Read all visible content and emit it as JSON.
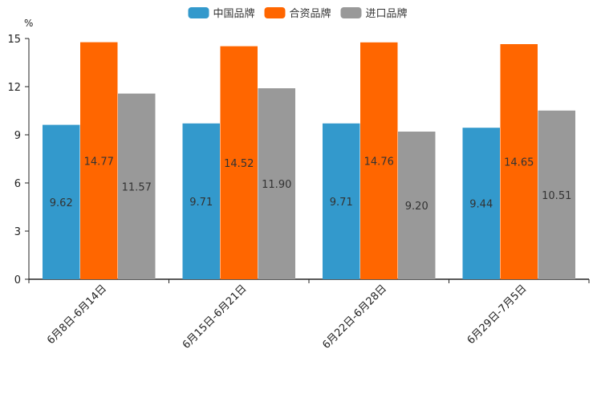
{
  "chart_data": {
    "type": "bar",
    "title": "",
    "ylabel": "%",
    "xlabel": "",
    "ylim": [
      0,
      15
    ],
    "yticks": [
      0,
      3,
      6,
      9,
      12,
      15
    ],
    "categories": [
      "6月8日-6月14日",
      "6月15日-6月21日",
      "6月22日-6月28日",
      "6月29日-7月5日"
    ],
    "series": [
      {
        "name": "中国品牌",
        "color": "#3399CC",
        "values": [
          9.62,
          9.71,
          9.71,
          9.44
        ],
        "labels": [
          "9.62",
          "9.71",
          "9.71",
          "9.44"
        ]
      },
      {
        "name": "合资品牌",
        "color": "#FF6600",
        "values": [
          14.77,
          14.52,
          14.76,
          14.65
        ],
        "labels": [
          "14.77",
          "14.52",
          "14.76",
          "14.65"
        ]
      },
      {
        "name": "进口品牌",
        "color": "#999999",
        "values": [
          11.57,
          11.9,
          9.2,
          10.51
        ],
        "labels": [
          "11.57",
          "11.90",
          "9.20",
          "10.51"
        ]
      }
    ],
    "legend_position": "top-center",
    "grid": false
  }
}
